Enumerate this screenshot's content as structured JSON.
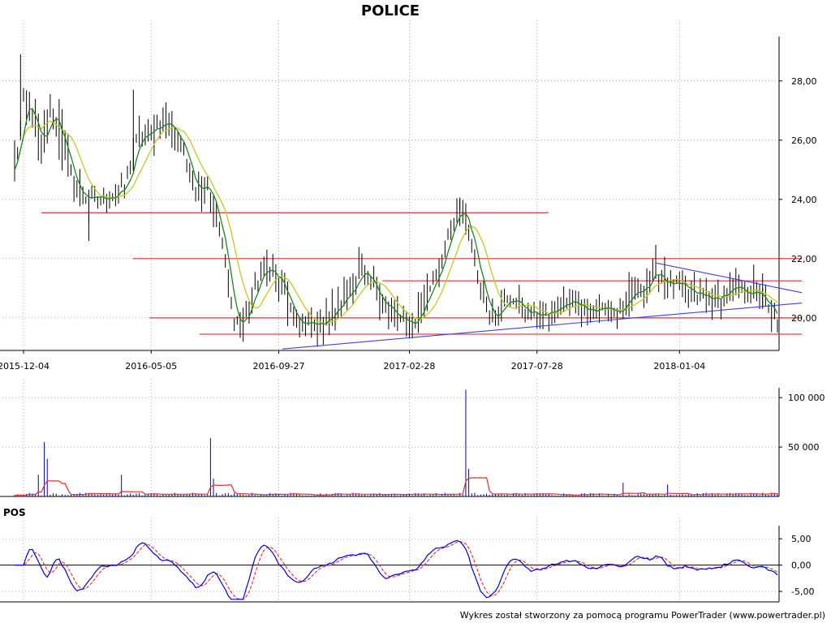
{
  "chart_data": {
    "type": "candlestick",
    "title": "POLICE",
    "footer": "Wykres został stworzony za pomocą programu PowerTrader (www.powertrader.pl)",
    "x_tick_labels": [
      "2015-12-04",
      "2016-05-05",
      "2016-09-27",
      "2017-02-28",
      "2017-07-28",
      "2018-01-04"
    ],
    "price_panel": {
      "ylim": [
        18.9,
        29.5
      ],
      "y_ticks": [
        20,
        22,
        24,
        26,
        28
      ],
      "y_tick_labels": [
        "20,00",
        "22,00",
        "24,00",
        "26,00",
        "28,00"
      ],
      "grid": true,
      "colors": {
        "bars": "#000000",
        "fast_ma": "#1a8a1a",
        "slow_ma": "#c8c820",
        "support_resistance": "#e03030",
        "trendline": "#4040e0"
      },
      "anchors": [
        [
          0,
          24.9
        ],
        [
          3,
          27.2
        ],
        [
          6,
          26.8
        ],
        [
          9,
          25.6
        ],
        [
          12,
          27.0
        ],
        [
          15,
          26.4
        ],
        [
          18,
          25.1
        ],
        [
          21,
          24.3
        ],
        [
          25,
          24.0
        ],
        [
          29,
          24.0
        ],
        [
          33,
          24.2
        ],
        [
          37,
          24.3
        ],
        [
          41,
          25.9
        ],
        [
          45,
          26.2
        ],
        [
          49,
          26.6
        ],
        [
          53,
          26.5
        ],
        [
          57,
          25.6
        ],
        [
          61,
          24.4
        ],
        [
          65,
          24.6
        ],
        [
          68,
          23.3
        ],
        [
          70,
          22.5
        ],
        [
          73,
          20.3
        ],
        [
          76,
          19.7
        ],
        [
          79,
          20.4
        ],
        [
          82,
          21.3
        ],
        [
          85,
          21.7
        ],
        [
          88,
          21.4
        ],
        [
          91,
          20.8
        ],
        [
          94,
          19.9
        ],
        [
          97,
          19.8
        ],
        [
          100,
          19.7
        ],
        [
          104,
          19.9
        ],
        [
          108,
          20.2
        ],
        [
          112,
          20.8
        ],
        [
          116,
          21.5
        ],
        [
          120,
          21.1
        ],
        [
          124,
          20.6
        ],
        [
          128,
          20.0
        ],
        [
          132,
          19.8
        ],
        [
          135,
          19.9
        ],
        [
          139,
          20.8
        ],
        [
          143,
          21.8
        ],
        [
          147,
          22.9
        ],
        [
          150,
          23.7
        ],
        [
          153,
          23.0
        ],
        [
          156,
          21.5
        ],
        [
          160,
          20.2
        ],
        [
          164,
          20.3
        ],
        [
          168,
          20.7
        ],
        [
          172,
          20.2
        ],
        [
          176,
          20.1
        ],
        [
          180,
          20.1
        ],
        [
          184,
          20.4
        ],
        [
          188,
          20.5
        ],
        [
          192,
          20.4
        ],
        [
          196,
          20.3
        ],
        [
          200,
          20.3
        ],
        [
          204,
          20.2
        ],
        [
          208,
          20.7
        ],
        [
          212,
          21.1
        ],
        [
          216,
          21.5
        ],
        [
          220,
          21.2
        ],
        [
          224,
          21.0
        ],
        [
          228,
          20.8
        ],
        [
          232,
          20.7
        ],
        [
          236,
          20.6
        ],
        [
          240,
          20.9
        ],
        [
          244,
          20.9
        ],
        [
          248,
          20.9
        ],
        [
          252,
          20.7
        ],
        [
          254,
          20.2
        ],
        [
          257,
          20.0
        ]
      ],
      "horizontal_levels": [
        {
          "y": 23.55,
          "x_from": 0.05,
          "x_to": 0.66
        },
        {
          "y": 22.0,
          "x_from": 0.16,
          "x_to": 0.965
        },
        {
          "y": 21.25,
          "x_from": 0.46,
          "x_to": 0.965
        },
        {
          "y": 20.0,
          "x_from": 0.18,
          "x_to": 0.965
        },
        {
          "y": 19.45,
          "x_from": 0.24,
          "x_to": 0.965
        }
      ],
      "trendlines": [
        {
          "x1": 0.34,
          "y1": 18.95,
          "x2": 0.965,
          "y2": 20.5
        },
        {
          "x1": 0.79,
          "y1": 21.85,
          "x2": 0.965,
          "y2": 20.85
        }
      ]
    },
    "volume_panel": {
      "ylim": [
        0,
        110000
      ],
      "y_ticks": [
        50000,
        100000
      ],
      "y_tick_labels": [
        "50 000",
        "100 000"
      ],
      "colors": {
        "bars": "#0000c0",
        "average": "#e03030"
      },
      "spikes": [
        [
          10,
          55000
        ],
        [
          11,
          38000
        ],
        [
          8,
          22000
        ],
        [
          36,
          22000
        ],
        [
          66,
          59000
        ],
        [
          67,
          18000
        ],
        [
          152,
          108000
        ],
        [
          153,
          28000
        ],
        [
          205,
          14000
        ],
        [
          220,
          12000
        ]
      ]
    },
    "oscillator_panel": {
      "name": "POS",
      "ylim": [
        -7,
        7.5
      ],
      "y_ticks": [
        5,
        0,
        -5
      ],
      "y_tick_labels": [
        "5,00",
        "0,00",
        "-5,00"
      ],
      "colors": {
        "line": "#0000e0",
        "signal": "#e03030",
        "zero": "#000000"
      }
    }
  }
}
